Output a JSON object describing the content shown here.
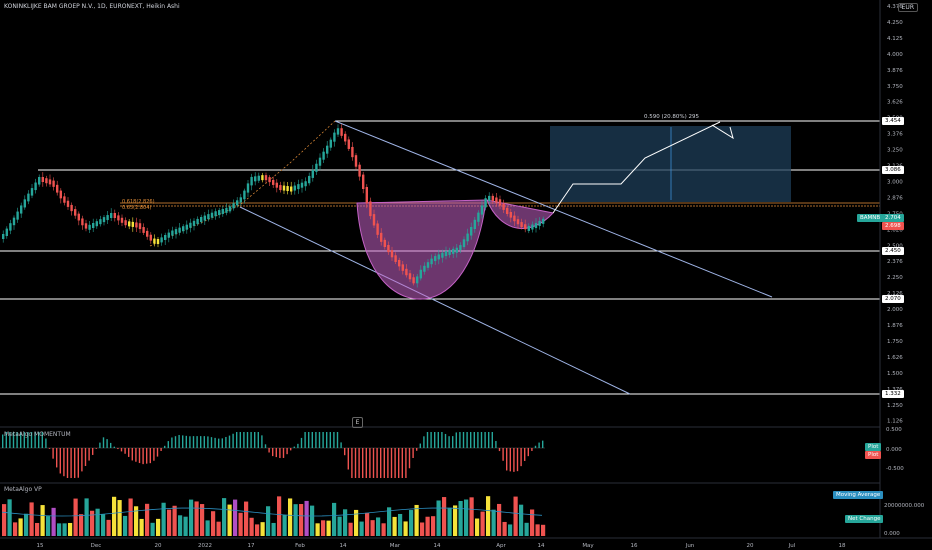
{
  "header": {
    "title": "KONINKLIJKE BAM GROEP N.V., 1D, EURONEXT, Heikin Ashi",
    "currency": "EUR"
  },
  "price_axis": {
    "ticks": [
      "4.376",
      "4.250",
      "4.125",
      "4.000",
      "3.876",
      "3.750",
      "3.626",
      "3.500",
      "3.376",
      "3.250",
      "3.126",
      "3.000",
      "2.876",
      "2.750",
      "2.626",
      "2.500",
      "2.376",
      "2.250",
      "2.126",
      "2.000",
      "1.876",
      "1.750",
      "1.626",
      "1.500",
      "1.376",
      "1.250",
      "1.126"
    ],
    "level_labels": [
      "3.454",
      "3.086",
      "2.450",
      "2.070",
      "1.332"
    ],
    "current_price": "2.704",
    "second_price": "2.698",
    "symbol_badge": "BAMNB"
  },
  "chart": {
    "fib_labels": [
      "0.618(2.826)",
      "0.65(2.804)"
    ],
    "target_label": "0.590 (20.80%) 295",
    "e_button": "E"
  },
  "momentum": {
    "label": "MetaAlgo MOMENTUM",
    "ticks": [
      "0.500",
      "0.000",
      "-0.500"
    ],
    "badges": [
      "Plot",
      "Plot"
    ]
  },
  "volume": {
    "label": "MetaAlgo VP",
    "ticks": [
      "20000000.000",
      "0.000"
    ],
    "badges": [
      "Moving Average",
      "Net Change"
    ]
  },
  "time_axis": {
    "labels": [
      "15",
      "Dec",
      "20",
      "2022",
      "17",
      "Feb",
      "14",
      "Mar",
      "14",
      "Apr",
      "14",
      "May",
      "16",
      "Jun",
      "20",
      "Jul",
      "18"
    ]
  },
  "colors": {
    "bull": "#26a69a",
    "bear": "#ef5350",
    "neutral_candle": "#f6e23a",
    "channel": "#90a8e0",
    "cup_fill": "#c462c6",
    "target_box": "#1e3e58"
  }
}
